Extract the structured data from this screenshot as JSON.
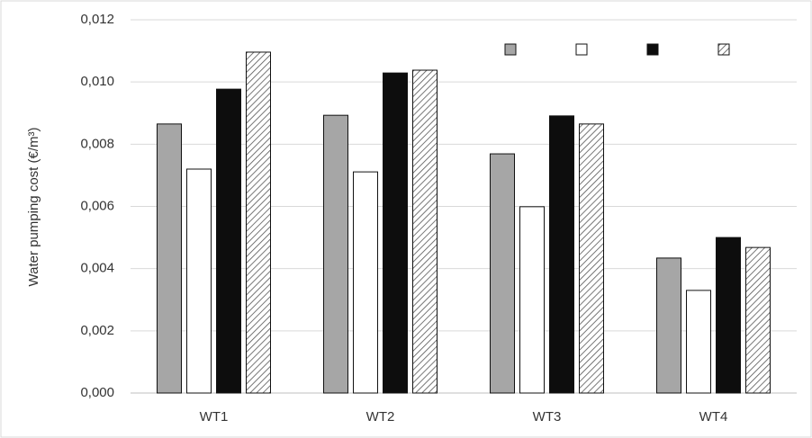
{
  "chart_data": {
    "type": "bar",
    "y_label": "Water pumping cost (€/m³)",
    "categories": [
      "WT1",
      "WT2",
      "WT3",
      "WT4"
    ],
    "series": [
      {
        "color": "#a6a6a6",
        "values": [
          0.00865,
          0.00893,
          0.00769,
          0.00434
        ]
      },
      {
        "color": "#ffffff",
        "values": [
          0.0072,
          0.00711,
          0.00599,
          0.0033
        ]
      },
      {
        "color": "#0d0d0d",
        "values": [
          0.00977,
          0.01029,
          0.00891,
          0.005
        ]
      },
      {
        "color": "#ffffff",
        "hatch": true,
        "values": [
          0.01096,
          0.01038,
          0.00865,
          0.00468
        ]
      }
    ],
    "ylim": [
      0,
      0.012
    ],
    "yticks": [
      {
        "value": 0,
        "label": "0,000"
      },
      {
        "value": 0.002,
        "label": "0,002"
      },
      {
        "value": 0.004,
        "label": "0,004"
      },
      {
        "value": 0.006,
        "label": "0,006"
      },
      {
        "value": 0.008,
        "label": "0,008"
      },
      {
        "value": 0.01,
        "label": "0,010"
      },
      {
        "value": 0.012,
        "label": "0,012"
      }
    ],
    "grid": true
  }
}
